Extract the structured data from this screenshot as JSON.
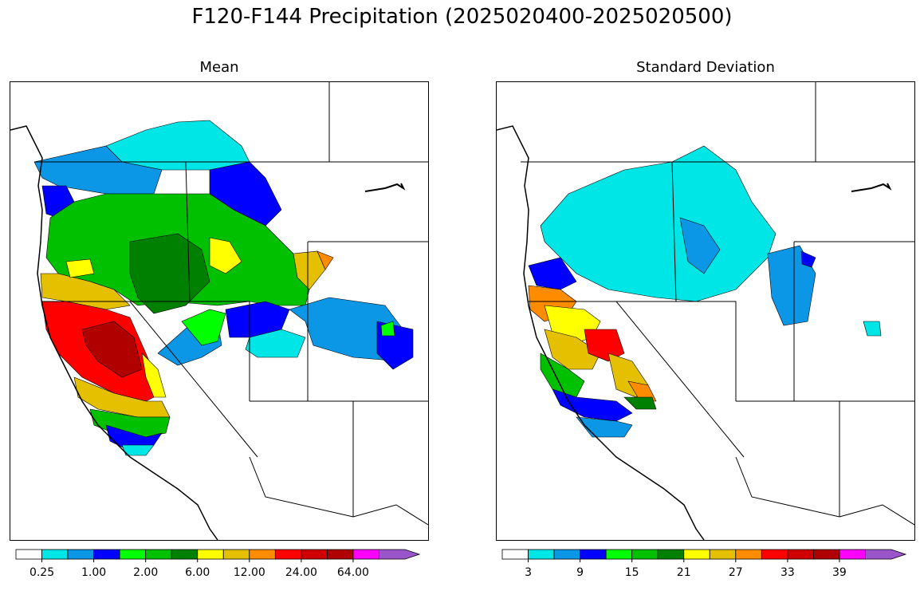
{
  "figure": {
    "title": "F120-F144 Precipitation (2025020400-2025020500)"
  },
  "panels": [
    {
      "title": "Mean",
      "colorbar": {
        "colors": [
          "#ffffff",
          "#00e5e5",
          "#0c96e6",
          "#0000ff",
          "#00ff00",
          "#00c000",
          "#008000",
          "#ffff00",
          "#e5c000",
          "#ff8c00",
          "#ff0000",
          "#d00000",
          "#b00000",
          "#ff00ff",
          "#9955c9"
        ],
        "extend": "max",
        "tick_labels": [
          "0.25",
          "1.00",
          "2.00",
          "6.00",
          "12.00",
          "24.00",
          "64.00"
        ]
      }
    },
    {
      "title": "Standard Deviation",
      "colorbar": {
        "colors": [
          "#ffffff",
          "#00e5e5",
          "#0c96e6",
          "#0000ff",
          "#00ff00",
          "#00c000",
          "#008000",
          "#ffff00",
          "#e5c000",
          "#ff8c00",
          "#ff0000",
          "#d00000",
          "#b00000",
          "#ff00ff",
          "#9955c9"
        ],
        "extend": "max",
        "tick_labels": [
          "3",
          "9",
          "15",
          "21",
          "27",
          "33",
          "39"
        ]
      }
    }
  ]
}
